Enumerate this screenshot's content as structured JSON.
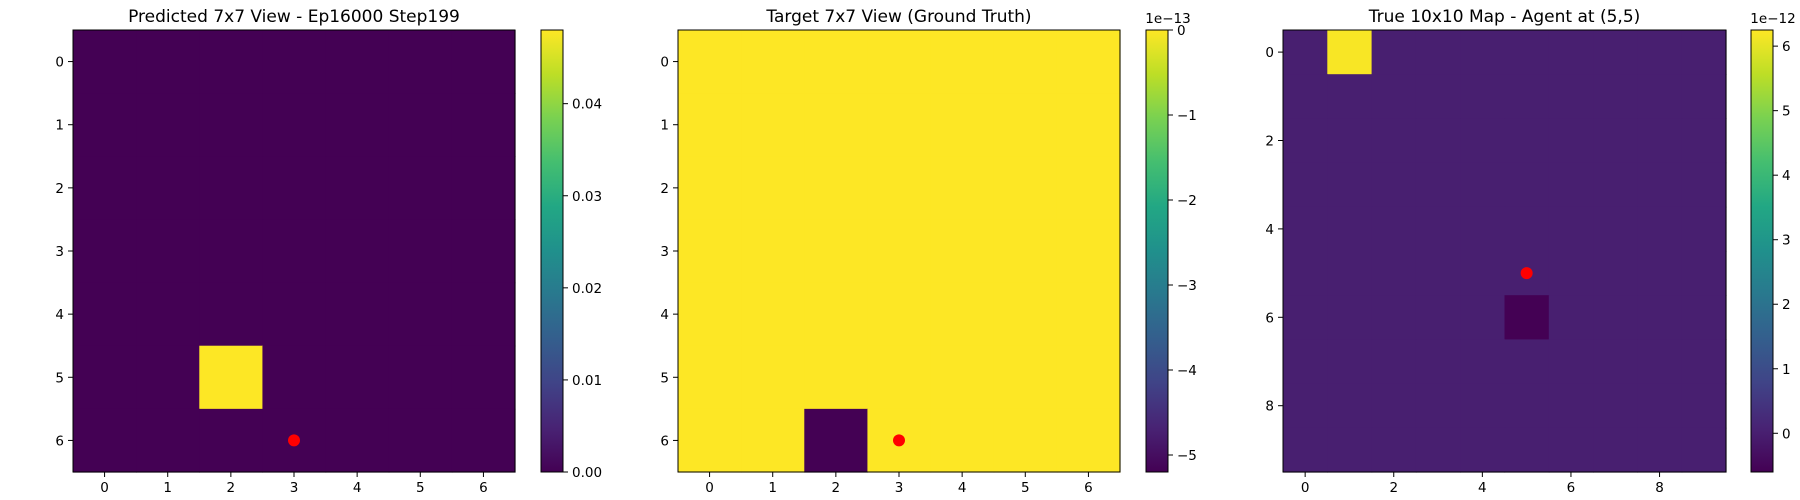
{
  "chart_data": [
    {
      "type": "heatmap",
      "title": "Predicted 7x7 View - Ep16000 Step199",
      "rows": 7,
      "cols": 7,
      "x_ticks": [
        0,
        1,
        2,
        3,
        4,
        5,
        6
      ],
      "y_ticks": [
        0,
        1,
        2,
        3,
        4,
        5,
        6
      ],
      "values": [
        [
          0,
          0,
          0,
          0,
          0,
          0,
          0
        ],
        [
          0,
          0,
          0,
          0,
          0,
          0,
          0
        ],
        [
          0,
          0,
          0,
          0,
          0,
          0,
          0
        ],
        [
          0,
          0,
          0,
          0,
          0,
          0,
          0
        ],
        [
          0,
          0,
          0,
          0,
          0,
          0,
          0
        ],
        [
          0,
          0,
          0.048,
          0,
          0,
          0,
          0
        ],
        [
          0,
          0,
          0,
          0,
          0,
          0,
          0
        ]
      ],
      "vmin": 0,
      "vmax": 0.048,
      "colorbar": {
        "ticks": [
          0.0,
          0.01,
          0.02,
          0.03,
          0.04
        ],
        "tick_labels": [
          "0.00",
          "0.01",
          "0.02",
          "0.03",
          "0.04"
        ],
        "offset_label": ""
      },
      "marker": {
        "x": 3,
        "y": 6,
        "color": "#ff0000"
      },
      "colormap": "viridis"
    },
    {
      "type": "heatmap",
      "title": "Target 7x7 View (Ground Truth)",
      "rows": 7,
      "cols": 7,
      "x_ticks": [
        0,
        1,
        2,
        3,
        4,
        5,
        6
      ],
      "y_ticks": [
        0,
        1,
        2,
        3,
        4,
        5,
        6
      ],
      "values": [
        [
          0,
          0,
          0,
          0,
          0,
          0,
          0
        ],
        [
          0,
          0,
          0,
          0,
          0,
          0,
          0
        ],
        [
          0,
          0,
          0,
          0,
          0,
          0,
          0
        ],
        [
          0,
          0,
          0,
          0,
          0,
          0,
          0
        ],
        [
          0,
          0,
          0,
          0,
          0,
          0,
          0
        ],
        [
          0,
          0,
          0,
          0,
          0,
          0,
          0
        ],
        [
          0,
          0,
          -5.2e-13,
          0,
          0,
          0,
          0
        ]
      ],
      "vmin": -5.2e-13,
      "vmax": 0,
      "colorbar": {
        "ticks": [
          0,
          -1e-13,
          -2e-13,
          -3e-13,
          -4e-13,
          -5e-13
        ],
        "tick_labels": [
          "0",
          "−1",
          "−2",
          "−3",
          "−4",
          "−5"
        ],
        "offset_label": "1e−13"
      },
      "marker": {
        "x": 3,
        "y": 6,
        "color": "#ff0000"
      },
      "colormap": "viridis"
    },
    {
      "type": "heatmap",
      "title": "True 10x10 Map - Agent at (5,5)",
      "rows": 10,
      "cols": 10,
      "x_ticks": [
        0,
        2,
        4,
        6,
        8
      ],
      "y_ticks": [
        0,
        2,
        4,
        6,
        8
      ],
      "values": [
        [
          0,
          6.2e-12,
          0,
          0,
          0,
          0,
          0,
          0,
          0,
          0
        ],
        [
          0,
          0,
          0,
          0,
          0,
          0,
          0,
          0,
          0,
          0
        ],
        [
          0,
          0,
          0,
          0,
          0,
          0,
          0,
          0,
          0,
          0
        ],
        [
          0,
          0,
          0,
          0,
          0,
          0,
          0,
          0,
          0,
          0
        ],
        [
          0,
          0,
          0,
          0,
          0,
          0,
          0,
          0,
          0,
          0
        ],
        [
          0,
          0,
          0,
          0,
          0,
          0,
          0,
          0,
          0,
          0
        ],
        [
          0,
          0,
          0,
          0,
          0,
          -6e-13,
          0,
          0,
          0,
          0
        ],
        [
          0,
          0,
          0,
          0,
          0,
          0,
          0,
          0,
          0,
          0
        ],
        [
          0,
          0,
          0,
          0,
          0,
          0,
          0,
          0,
          0,
          0
        ],
        [
          0,
          0,
          0,
          0,
          0,
          0,
          0,
          0,
          0,
          0
        ]
      ],
      "vmin": -6e-13,
      "vmax": 6.25e-12,
      "colorbar": {
        "ticks": [
          0,
          1e-12,
          2e-12,
          3e-12,
          4e-12,
          5e-12,
          6e-12
        ],
        "tick_labels": [
          "0",
          "1",
          "2",
          "3",
          "4",
          "5",
          "6"
        ],
        "offset_label": "1e−12"
      },
      "marker": {
        "x": 5,
        "y": 5,
        "color": "#ff0000"
      },
      "colormap": "viridis"
    }
  ]
}
